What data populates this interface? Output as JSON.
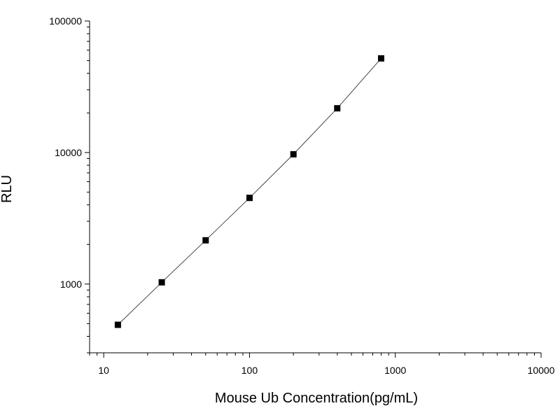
{
  "chart_data": {
    "type": "scatter",
    "xlabel": "Mouse Ub Concentration(pg/mL)",
    "ylabel": "RLU",
    "x_scale": "log",
    "y_scale": "log",
    "xlim": [
      8,
      10000
    ],
    "ylim": [
      300,
      100000
    ],
    "x_ticks": [
      {
        "value": 10,
        "label": "10"
      },
      {
        "value": 100,
        "label": "100"
      },
      {
        "value": 1000,
        "label": "1000"
      },
      {
        "value": 10000,
        "label": "10000"
      }
    ],
    "y_ticks": [
      {
        "value": 1000,
        "label": "1000"
      },
      {
        "value": 10000,
        "label": "10000"
      },
      {
        "value": 100000,
        "label": "100000"
      }
    ],
    "grid": false,
    "legend": "none",
    "series": [
      {
        "marker": "square",
        "line": "fit",
        "color": "#000000",
        "x": [
          12.5,
          25,
          50,
          100,
          200,
          400,
          800
        ],
        "y": [
          490,
          1030,
          2150,
          4520,
          9700,
          21700,
          52000
        ]
      }
    ]
  }
}
